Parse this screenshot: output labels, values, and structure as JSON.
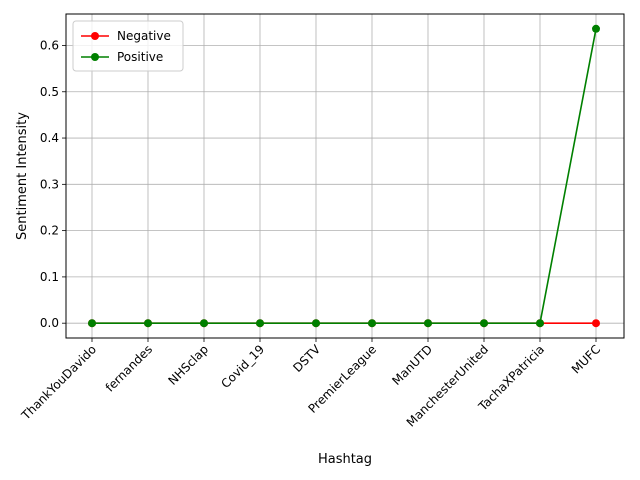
{
  "chart_data": {
    "type": "line",
    "title": "",
    "xlabel": "Hashtag",
    "ylabel": "Sentiment Intensity",
    "categories": [
      "ThankYouDavido",
      "fernandes",
      "NHSclap",
      "Covid_19",
      "DSTV",
      "PremierLeague",
      "ManUTD",
      "ManchesterUnited",
      "TachaXPatricia",
      "MUFC"
    ],
    "series": [
      {
        "name": "Negative",
        "color": "#ff0000",
        "values": [
          0,
          0,
          0,
          0,
          0,
          0,
          0,
          0,
          0,
          0
        ]
      },
      {
        "name": "Positive",
        "color": "#008000",
        "values": [
          0,
          0,
          0,
          0,
          0,
          0,
          0,
          0,
          0,
          0.636
        ]
      }
    ],
    "ylim": [
      -0.032,
      0.668
    ],
    "yticks": [
      0.0,
      0.1,
      0.2,
      0.3,
      0.4,
      0.5,
      0.6
    ],
    "ytick_labels": [
      "0.0",
      "0.1",
      "0.2",
      "0.3",
      "0.4",
      "0.5",
      "0.6"
    ],
    "grid": true,
    "legend": "top-left",
    "xtick_rotation_deg": 45
  }
}
